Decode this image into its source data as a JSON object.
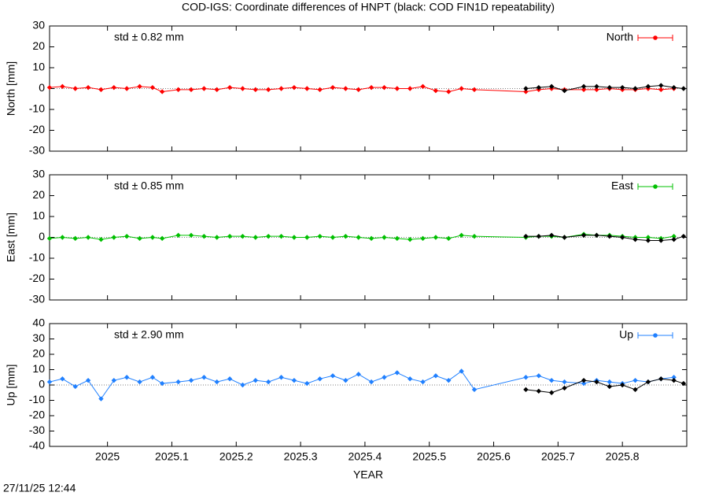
{
  "title": "COD-IGS: Coordinate differences of HNPT (black: COD FIN1D repeatability)",
  "timestamp": "27/11/25 12:44",
  "chart_data": [
    {
      "type": "line",
      "ylabel": "North [mm]",
      "annotation": "std ± 0.82 mm",
      "legend": "upper-right",
      "hline": 0,
      "xlim": [
        2024.91,
        2025.9
      ],
      "xticks": [
        2025,
        2025.1,
        2025.2,
        2025.3,
        2025.4,
        2025.5,
        2025.6,
        2025.7,
        2025.8
      ],
      "ylim": [
        -30,
        30
      ],
      "yticks": [
        -30,
        -20,
        -10,
        0,
        10,
        20,
        30
      ],
      "series": [
        {
          "name": "North",
          "color": "#ff0000",
          "x": [
            2024.91,
            2024.93,
            2024.95,
            2024.97,
            2024.99,
            2025.01,
            2025.03,
            2025.05,
            2025.07,
            2025.085,
            2025.11,
            2025.13,
            2025.15,
            2025.17,
            2025.19,
            2025.21,
            2025.23,
            2025.25,
            2025.27,
            2025.29,
            2025.31,
            2025.33,
            2025.35,
            2025.37,
            2025.39,
            2025.41,
            2025.43,
            2025.45,
            2025.47,
            2025.49,
            2025.51,
            2025.53,
            2025.55,
            2025.57,
            2025.65,
            2025.67,
            2025.69,
            2025.71,
            2025.74,
            2025.76,
            2025.78,
            2025.8,
            2025.82,
            2025.84,
            2025.86,
            2025.88
          ],
          "values": [
            0.5,
            1,
            0,
            0.5,
            -0.5,
            0.5,
            0,
            1,
            0.5,
            -1.5,
            -0.5,
            -0.5,
            0,
            -0.5,
            0.5,
            0,
            -0.5,
            -0.5,
            0,
            0.5,
            0,
            -0.5,
            0.5,
            0,
            -0.5,
            0.5,
            0.5,
            0,
            0,
            1,
            -1,
            -1.5,
            0,
            -0.5,
            -1.5,
            -0.5,
            0,
            -0.5,
            -0.5,
            -0.5,
            0,
            -0.5,
            -0.5,
            0,
            -0.5,
            0
          ]
        },
        {
          "color": "#000000",
          "x": [
            2025.65,
            2025.67,
            2025.69,
            2025.71,
            2025.74,
            2025.76,
            2025.78,
            2025.8,
            2025.82,
            2025.84,
            2025.86,
            2025.88,
            2025.895
          ],
          "values": [
            0,
            0.5,
            1,
            -1,
            1,
            1,
            0.5,
            0.5,
            0,
            1,
            1.5,
            0.5,
            0
          ]
        }
      ]
    },
    {
      "type": "line",
      "ylabel": "East [mm]",
      "annotation": "std ± 0.85 mm",
      "legend": "upper-right",
      "hline": 0,
      "xlim": [
        2024.91,
        2025.9
      ],
      "xticks": [
        2025,
        2025.1,
        2025.2,
        2025.3,
        2025.4,
        2025.5,
        2025.6,
        2025.7,
        2025.8
      ],
      "ylim": [
        -30,
        30
      ],
      "yticks": [
        -30,
        -20,
        -10,
        0,
        10,
        20,
        30
      ],
      "series": [
        {
          "name": "East",
          "color": "#00c000",
          "x": [
            2024.91,
            2024.93,
            2024.95,
            2024.97,
            2024.99,
            2025.01,
            2025.03,
            2025.05,
            2025.07,
            2025.085,
            2025.11,
            2025.13,
            2025.15,
            2025.17,
            2025.19,
            2025.21,
            2025.23,
            2025.25,
            2025.27,
            2025.29,
            2025.31,
            2025.33,
            2025.35,
            2025.37,
            2025.39,
            2025.41,
            2025.43,
            2025.45,
            2025.47,
            2025.49,
            2025.51,
            2025.53,
            2025.55,
            2025.57,
            2025.65,
            2025.67,
            2025.69,
            2025.71,
            2025.74,
            2025.76,
            2025.78,
            2025.8,
            2025.82,
            2025.84,
            2025.86,
            2025.88
          ],
          "values": [
            -0.5,
            0,
            -0.5,
            0,
            -1,
            0,
            0.5,
            -0.5,
            0,
            -0.5,
            1,
            1,
            0.5,
            0,
            0.5,
            0.5,
            0,
            0.5,
            0.5,
            0,
            0,
            0.5,
            0,
            0.5,
            0,
            -0.5,
            0,
            -0.5,
            -1,
            -0.5,
            0,
            -0.5,
            1,
            0.5,
            0,
            0.5,
            0.5,
            0,
            1.5,
            1,
            1,
            0.5,
            0,
            0,
            -0.5,
            0.5
          ]
        },
        {
          "color": "#000000",
          "x": [
            2025.65,
            2025.67,
            2025.69,
            2025.71,
            2025.74,
            2025.76,
            2025.78,
            2025.8,
            2025.82,
            2025.84,
            2025.86,
            2025.88,
            2025.895
          ],
          "values": [
            0.5,
            0.5,
            1,
            0,
            1,
            1,
            0.5,
            0,
            -1,
            -1.5,
            -1.5,
            -1,
            0.5
          ]
        }
      ]
    },
    {
      "type": "line",
      "ylabel": "Up [mm]",
      "xlabel": "YEAR",
      "annotation": "std ± 2.90 mm",
      "legend": "upper-right",
      "hline": 0,
      "xlim": [
        2024.91,
        2025.9
      ],
      "xticks": [
        2025,
        2025.1,
        2025.2,
        2025.3,
        2025.4,
        2025.5,
        2025.6,
        2025.7,
        2025.8
      ],
      "ylim": [
        -40,
        40
      ],
      "yticks": [
        -40,
        -30,
        -20,
        -10,
        0,
        10,
        20,
        30,
        40
      ],
      "series": [
        {
          "name": "Up",
          "color": "#2080ff",
          "x": [
            2024.91,
            2024.93,
            2024.95,
            2024.97,
            2024.99,
            2025.01,
            2025.03,
            2025.05,
            2025.07,
            2025.085,
            2025.11,
            2025.13,
            2025.15,
            2025.17,
            2025.19,
            2025.21,
            2025.23,
            2025.25,
            2025.27,
            2025.29,
            2025.31,
            2025.33,
            2025.35,
            2025.37,
            2025.39,
            2025.41,
            2025.43,
            2025.45,
            2025.47,
            2025.49,
            2025.51,
            2025.53,
            2025.55,
            2025.57,
            2025.65,
            2025.67,
            2025.69,
            2025.71,
            2025.74,
            2025.76,
            2025.78,
            2025.8,
            2025.82,
            2025.84,
            2025.86,
            2025.88
          ],
          "values": [
            2,
            4,
            -1,
            3,
            -9,
            3,
            5,
            2,
            5,
            1,
            2,
            3,
            5,
            2,
            4,
            0,
            3,
            2,
            5,
            3,
            1,
            4,
            6,
            3,
            7,
            2,
            5,
            8,
            4,
            2,
            6,
            3,
            9,
            -3,
            5,
            6,
            3,
            2,
            1,
            3,
            2,
            1,
            3,
            2,
            4,
            5
          ]
        },
        {
          "color": "#000000",
          "x": [
            2025.65,
            2025.67,
            2025.69,
            2025.71,
            2025.74,
            2025.76,
            2025.78,
            2025.8,
            2025.82,
            2025.84,
            2025.86,
            2025.88,
            2025.895
          ],
          "values": [
            -3,
            -4,
            -5,
            -2,
            3,
            2,
            -1,
            0,
            -3,
            2,
            4,
            3,
            1
          ]
        }
      ]
    }
  ]
}
